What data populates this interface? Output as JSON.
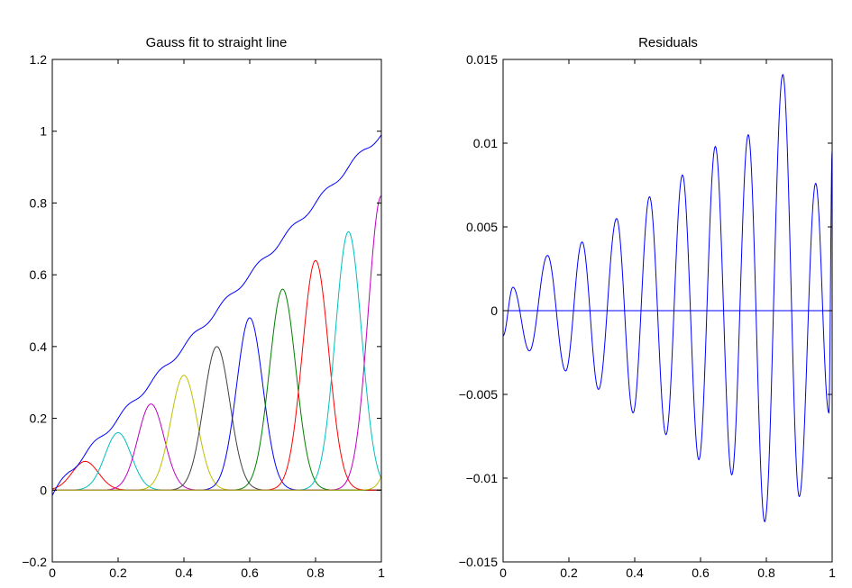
{
  "chart_data": [
    {
      "type": "line",
      "title": "Gauss fit to straight line",
      "xlabel": "",
      "ylabel": "",
      "xlim": [
        0,
        1
      ],
      "ylim": [
        -0.2,
        1.2
      ],
      "xticks": [
        "0",
        "0.2",
        "0.4",
        "0.6",
        "0.8",
        "1"
      ],
      "yticks": [
        "−0.2",
        "0",
        "0.2",
        "0.4",
        "0.6",
        "0.8",
        "1",
        "1.2"
      ],
      "xtick_values": [
        0,
        0.2,
        0.4,
        0.6,
        0.8,
        1
      ],
      "ytick_values": [
        -0.2,
        0,
        0.2,
        0.4,
        0.6,
        0.8,
        1,
        1.2
      ],
      "grid": false,
      "fit_curve": {
        "color": "#0000ff",
        "x": [
          0,
          0.05,
          0.1,
          0.15,
          0.2,
          0.25,
          0.3,
          0.35,
          0.4,
          0.45,
          0.5,
          0.55,
          0.6,
          0.65,
          0.7,
          0.75,
          0.8,
          0.85,
          0.9,
          0.95,
          1.0
        ],
        "y": [
          -0.015,
          0.05,
          0.1,
          0.15,
          0.2,
          0.25,
          0.3,
          0.35,
          0.4,
          0.45,
          0.5,
          0.55,
          0.6,
          0.65,
          0.7,
          0.75,
          0.8,
          0.85,
          0.9,
          0.95,
          0.99
        ]
      },
      "components": [
        {
          "center": 0.1,
          "height": 0.08,
          "width": 0.04,
          "color": "#ff0000"
        },
        {
          "center": 0.2,
          "height": 0.16,
          "width": 0.04,
          "color": "#00bfbf"
        },
        {
          "center": 0.3,
          "height": 0.24,
          "width": 0.04,
          "color": "#bf00bf"
        },
        {
          "center": 0.4,
          "height": 0.32,
          "width": 0.04,
          "color": "#bfbf00"
        },
        {
          "center": 0.5,
          "height": 0.4,
          "width": 0.04,
          "color": "#404040"
        },
        {
          "center": 0.6,
          "height": 0.48,
          "width": 0.04,
          "color": "#0000ff"
        },
        {
          "center": 0.7,
          "height": 0.56,
          "width": 0.04,
          "color": "#008000"
        },
        {
          "center": 0.8,
          "height": 0.64,
          "width": 0.04,
          "color": "#ff0000"
        },
        {
          "center": 0.9,
          "height": 0.72,
          "width": 0.04,
          "color": "#00bfbf"
        },
        {
          "center": 1.0,
          "height": 0.82,
          "width": 0.04,
          "color": "#bf00bf"
        },
        {
          "center": 1.1,
          "height": 0.9,
          "width": 0.04,
          "color": "#bfbf00"
        }
      ]
    },
    {
      "type": "line",
      "title": "Residuals",
      "xlabel": "",
      "ylabel": "",
      "xlim": [
        0,
        1
      ],
      "ylim": [
        -0.015,
        0.015
      ],
      "xticks": [
        "0",
        "0.2",
        "0.4",
        "0.6",
        "0.8",
        "1"
      ],
      "yticks": [
        "−0.015",
        "−0.01",
        "−0.005",
        "0",
        "0.005",
        "0.01",
        "0.015"
      ],
      "xtick_values": [
        0,
        0.2,
        0.4,
        0.6,
        0.8,
        1
      ],
      "ytick_values": [
        -0.015,
        -0.01,
        -0.005,
        0,
        0.005,
        0.01,
        0.015
      ],
      "grid": false,
      "zero_line": true,
      "series_color": "#0000ff",
      "extrema": {
        "x": [
          0,
          0.03,
          0.08,
          0.135,
          0.19,
          0.24,
          0.29,
          0.345,
          0.395,
          0.445,
          0.495,
          0.545,
          0.595,
          0.645,
          0.695,
          0.745,
          0.795,
          0.85,
          0.9,
          0.95,
          0.99,
          1.0
        ],
        "y": [
          -0.0015,
          0.0014,
          -0.0024,
          0.0033,
          -0.0036,
          0.0041,
          -0.0047,
          0.0055,
          -0.0061,
          0.0068,
          -0.0074,
          0.0081,
          -0.0089,
          0.0098,
          -0.0098,
          0.0105,
          -0.0126,
          0.0141,
          -0.0111,
          0.0076,
          -0.0061,
          0.0095
        ]
      }
    }
  ]
}
